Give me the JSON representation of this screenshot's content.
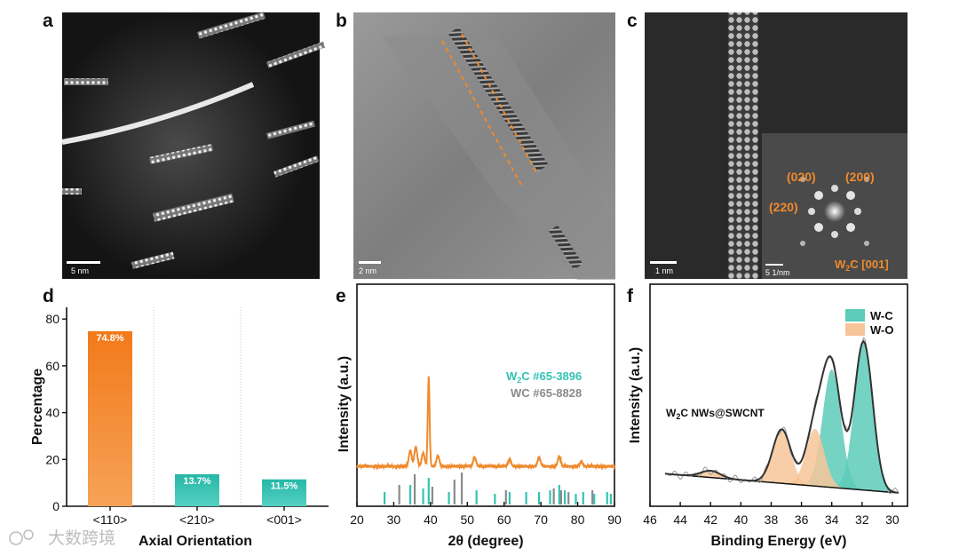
{
  "panels": {
    "a": {
      "label": "a",
      "scale_bar": "5 nm"
    },
    "b": {
      "label": "b",
      "scale_bar": "2 nm"
    },
    "c": {
      "label": "c",
      "scale_bar": "1 nm",
      "inset_scale_bar": "5 1/nm",
      "spots": [
        "(020)",
        "(200)",
        "(220)"
      ],
      "zone_axis": "W2C [001]"
    },
    "d": {
      "label": "d"
    },
    "e": {
      "label": "e"
    },
    "f": {
      "label": "f"
    }
  },
  "colors": {
    "orange": "#f08a2c",
    "teal": "#34c3b3",
    "gray": "#8a8a8a",
    "wo_fill": "#f7c59a",
    "wc_fill": "#5ccbb8"
  },
  "watermark": {
    "text": "大数跨境"
  },
  "chart_data": [
    {
      "panel": "d",
      "type": "bar",
      "categories": [
        "<110>",
        "<210>",
        "<001>"
      ],
      "values": [
        74.8,
        13.7,
        11.5
      ],
      "value_labels": [
        "74.8%",
        "13.7%",
        "11.5%"
      ],
      "bar_colors": [
        "#f08a2c",
        "#34c3b3",
        "#34c3b3"
      ],
      "xlabel": "Axial Orientation",
      "ylabel": "Percentage",
      "ylim": [
        0,
        85
      ],
      "yticks": [
        "0",
        "20",
        "40",
        "60",
        "80"
      ],
      "legend": "none",
      "grid": "vertical dividers between categories"
    },
    {
      "panel": "e",
      "type": "line",
      "xlabel": "2θ (degree)",
      "ylabel": "Intensity (a.u.)",
      "xlim": [
        20,
        90
      ],
      "xticks": [
        "20",
        "30",
        "40",
        "50",
        "60",
        "70",
        "80",
        "90"
      ],
      "peaks_2theta": [
        34.5,
        36.0,
        38.0,
        39.5,
        42.0,
        52.0,
        61.5,
        69.5,
        75.0,
        81.0
      ],
      "peak_heights": [
        0.18,
        0.22,
        0.15,
        1.0,
        0.12,
        0.1,
        0.08,
        0.1,
        0.11,
        0.05
      ],
      "legend_entries": [
        {
          "name": "W2C #65-3896",
          "color": "#34c3b3"
        },
        {
          "name": "WC #65-8828",
          "color": "#8a8a8a"
        }
      ],
      "reference_lines": [
        {
          "name": "W2C #65-3896",
          "positions": [
            27.5,
            34.5,
            38.0,
            39.5,
            45.0,
            52.5,
            57.5,
            61.5,
            66.0,
            69.5,
            72.5,
            75.0,
            76.5,
            79.5,
            81.5,
            84.5,
            88.0,
            89.0
          ]
        },
        {
          "name": "WC #65-8828",
          "positions": [
            31.5,
            35.7,
            40.5,
            46.5,
            48.5,
            60.5,
            73.5,
            75.5,
            77.5,
            84.0
          ]
        }
      ]
    },
    {
      "panel": "f",
      "type": "line",
      "xlabel": "Binding Energy (eV)",
      "ylabel": "Intensity (a.u.)",
      "xlim": [
        46,
        29
      ],
      "xticks": [
        "46",
        "44",
        "42",
        "40",
        "38",
        "36",
        "34",
        "32",
        "30"
      ],
      "annotation": "W2C NWs@SWCNT",
      "legend": "top-right",
      "series": [
        {
          "name": "W-C",
          "color": "#5ccbb8",
          "peaks": [
            {
              "center": 31.9,
              "height": 0.88
            },
            {
              "center": 34.0,
              "height": 0.7
            }
          ]
        },
        {
          "name": "W-O",
          "color": "#f7c59a",
          "peaks": [
            {
              "center": 35.1,
              "height": 0.34
            },
            {
              "center": 37.3,
              "height": 0.32
            },
            {
              "center": 42.0,
              "height": 0.04
            }
          ]
        }
      ]
    }
  ]
}
